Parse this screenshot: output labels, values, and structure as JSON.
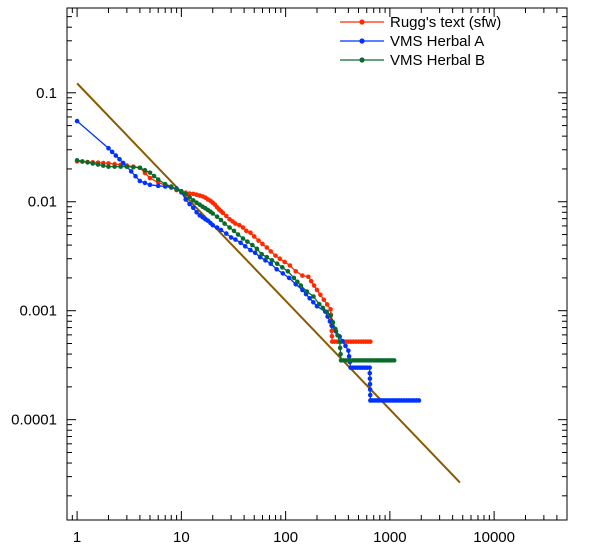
{
  "chart_data": {
    "type": "line",
    "xscale": "log",
    "yscale": "log",
    "xlim": [
      0.8,
      50000
    ],
    "ylim": [
      1.2e-05,
      0.6
    ],
    "xticks": [
      1,
      10,
      100,
      1000,
      10000
    ],
    "xtick_labels": [
      "1",
      "10",
      "100",
      "1000",
      "10000"
    ],
    "yticks": [
      0.1,
      0.01,
      0.001,
      0.0001
    ],
    "ytick_labels": [
      "0.1",
      "0.01",
      "0.001",
      "0.0001"
    ],
    "legend_position": "top-right",
    "reference_line": {
      "color": "#8b5a00",
      "points": [
        [
          1,
          0.122
        ],
        [
          4700,
          2.65e-05
        ]
      ]
    },
    "series": [
      {
        "name": "Rugg's text (sfw)",
        "color": "#ff2a00",
        "points": [
          [
            1,
            0.0235
          ],
          [
            2,
            0.0225
          ],
          [
            3,
            0.0215
          ],
          [
            4,
            0.0205
          ],
          [
            5,
            0.0165
          ],
          [
            6,
            0.015
          ],
          [
            7,
            0.0142
          ],
          [
            8,
            0.0137
          ],
          [
            9,
            0.0128
          ],
          [
            10,
            0.0124
          ],
          [
            11,
            0.0121
          ],
          [
            12,
            0.0119
          ],
          [
            13,
            0.0118
          ],
          [
            14,
            0.0116
          ],
          [
            15,
            0.0114
          ],
          [
            16,
            0.0112
          ],
          [
            17,
            0.0109
          ],
          [
            18,
            0.0105
          ],
          [
            19,
            0.0102
          ],
          [
            20,
            0.0098
          ],
          [
            21,
            0.0094
          ],
          [
            22,
            0.0089
          ],
          [
            23,
            0.0085
          ],
          [
            24,
            0.0082
          ],
          [
            25,
            0.0079
          ],
          [
            27,
            0.0074
          ],
          [
            29,
            0.0069
          ],
          [
            31,
            0.0066
          ],
          [
            33,
            0.0063
          ],
          [
            36,
            0.0061
          ],
          [
            39,
            0.0058
          ],
          [
            42,
            0.0054
          ],
          [
            46,
            0.0052
          ],
          [
            50,
            0.0048
          ],
          [
            55,
            0.0044
          ],
          [
            60,
            0.0041
          ],
          [
            66,
            0.0038
          ],
          [
            72,
            0.0035
          ],
          [
            80,
            0.0032
          ],
          [
            88,
            0.003
          ],
          [
            98,
            0.0028
          ],
          [
            110,
            0.0026
          ],
          [
            125,
            0.0023
          ],
          [
            145,
            0.0021
          ],
          [
            165,
            0.00205
          ],
          [
            200,
            0.00155
          ],
          [
            270,
            0.00103
          ],
          [
            280,
            0.00052
          ],
          [
            420,
            0.00052
          ],
          [
            500,
            0.00052
          ],
          [
            650,
            0.00052
          ]
        ]
      },
      {
        "name": "VMS Herbal A",
        "color": "#0033ff",
        "points": [
          [
            1,
            0.055
          ],
          [
            2,
            0.031
          ],
          [
            3,
            0.021
          ],
          [
            4,
            0.0155
          ],
          [
            5,
            0.0143
          ],
          [
            6,
            0.014
          ],
          [
            7,
            0.0138
          ],
          [
            8,
            0.0135
          ],
          [
            9,
            0.0132
          ],
          [
            10,
            0.0122
          ],
          [
            11,
            0.0105
          ],
          [
            12,
            0.0095
          ],
          [
            13,
            0.0088
          ],
          [
            14,
            0.008
          ],
          [
            15,
            0.0075
          ],
          [
            16,
            0.0072
          ],
          [
            17,
            0.0069
          ],
          [
            18,
            0.0067
          ],
          [
            19,
            0.0064
          ],
          [
            20,
            0.0061
          ],
          [
            22,
            0.0058
          ],
          [
            24,
            0.0055
          ],
          [
            27,
            0.0051
          ],
          [
            30,
            0.0047
          ],
          [
            33,
            0.0045
          ],
          [
            37,
            0.0042
          ],
          [
            41,
            0.0039
          ],
          [
            46,
            0.0036
          ],
          [
            51,
            0.0034
          ],
          [
            57,
            0.0031
          ],
          [
            64,
            0.0029
          ],
          [
            72,
            0.0027
          ],
          [
            82,
            0.0024
          ],
          [
            94,
            0.0022
          ],
          [
            108,
            0.002
          ],
          [
            125,
            0.00175
          ],
          [
            145,
            0.00155
          ],
          [
            170,
            0.0013
          ],
          [
            200,
            0.0011
          ],
          [
            240,
            0.00098
          ],
          [
            280,
            0.00072
          ],
          [
            330,
            0.00058
          ],
          [
            400,
            0.00043
          ],
          [
            420,
            0.0003
          ],
          [
            640,
            0.0003
          ],
          [
            650,
            0.00015
          ],
          [
            1300,
            0.00015
          ],
          [
            1900,
            0.00015
          ]
        ]
      },
      {
        "name": "VMS Herbal B",
        "color": "#0b6b2d",
        "points": [
          [
            1,
            0.024
          ],
          [
            2,
            0.021
          ],
          [
            3,
            0.021
          ],
          [
            4,
            0.0205
          ],
          [
            5,
            0.0185
          ],
          [
            6,
            0.016
          ],
          [
            7,
            0.0145
          ],
          [
            8,
            0.0138
          ],
          [
            9,
            0.013
          ],
          [
            10,
            0.0125
          ],
          [
            11,
            0.0118
          ],
          [
            12,
            0.011
          ],
          [
            13,
            0.0103
          ],
          [
            14,
            0.0098
          ],
          [
            15,
            0.0094
          ],
          [
            16,
            0.009
          ],
          [
            17,
            0.0087
          ],
          [
            18,
            0.0084
          ],
          [
            19,
            0.0081
          ],
          [
            20,
            0.0078
          ],
          [
            22,
            0.0073
          ],
          [
            24,
            0.0068
          ],
          [
            26,
            0.0063
          ],
          [
            29,
            0.0058
          ],
          [
            32,
            0.0054
          ],
          [
            35,
            0.005
          ],
          [
            39,
            0.0046
          ],
          [
            43,
            0.0043
          ],
          [
            48,
            0.004
          ],
          [
            53,
            0.0037
          ],
          [
            59,
            0.0033
          ],
          [
            66,
            0.0031
          ],
          [
            74,
            0.0029
          ],
          [
            83,
            0.0027
          ],
          [
            93,
            0.0025
          ],
          [
            105,
            0.0023
          ],
          [
            120,
            0.002
          ],
          [
            140,
            0.0017
          ],
          [
            160,
            0.0015
          ],
          [
            185,
            0.00135
          ],
          [
            210,
            0.00115
          ],
          [
            270,
            0.0009
          ],
          [
            300,
            0.00068
          ],
          [
            330,
            0.00052
          ],
          [
            340,
            0.00035
          ],
          [
            700,
            0.00035
          ],
          [
            1100,
            0.00035
          ]
        ]
      }
    ]
  }
}
